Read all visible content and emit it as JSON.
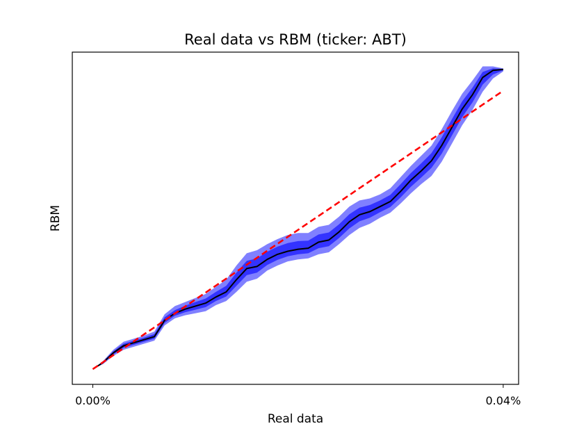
{
  "chart_data": {
    "type": "line",
    "title": "Real data vs RBM (ticker: ABT)",
    "xlabel": "Real data",
    "ylabel": "RBM",
    "x_ticks": [
      {
        "value": 0.0,
        "label": "0.00%"
      },
      {
        "value": 0.04,
        "label": "0.04%"
      }
    ],
    "xlim": [
      -0.002,
      0.0415
    ],
    "ylim": [
      -0.0015,
      0.0312
    ],
    "grid": false,
    "legend": "none",
    "x": [
      0.0,
      0.001,
      0.002,
      0.003,
      0.004,
      0.005,
      0.006,
      0.007,
      0.008,
      0.009,
      0.01,
      0.011,
      0.012,
      0.013,
      0.014,
      0.015,
      0.016,
      0.017,
      0.018,
      0.019,
      0.02,
      0.021,
      0.022,
      0.023,
      0.024,
      0.025,
      0.026,
      0.027,
      0.028,
      0.029,
      0.03,
      0.031,
      0.032,
      0.033,
      0.034,
      0.035,
      0.036,
      0.037,
      0.038,
      0.039,
      0.04
    ],
    "series": [
      {
        "role": "rbm-median",
        "color": "#000000",
        "values": [
          0.0,
          0.00065,
          0.0016,
          0.0023,
          0.0026,
          0.0029,
          0.0032,
          0.0048,
          0.0055,
          0.0059,
          0.0062,
          0.0065,
          0.0071,
          0.0076,
          0.0088,
          0.0099,
          0.0101,
          0.0108,
          0.0113,
          0.0116,
          0.0118,
          0.0119,
          0.0125,
          0.0127,
          0.0135,
          0.0145,
          0.0152,
          0.0155,
          0.016,
          0.0165,
          0.0175,
          0.0186,
          0.0195,
          0.0205,
          0.022,
          0.0238,
          0.0256,
          0.027,
          0.0287,
          0.0294,
          0.0295
        ]
      },
      {
        "role": "reference",
        "color": "#ff0000",
        "values": [
          0.0,
          0.000685,
          0.00137,
          0.002055,
          0.00274,
          0.003425,
          0.00411,
          0.004795,
          0.00548,
          0.006165,
          0.00685,
          0.007535,
          0.00822,
          0.008905,
          0.00959,
          0.010275,
          0.01096,
          0.011645,
          0.01233,
          0.013015,
          0.0137,
          0.014385,
          0.01507,
          0.015755,
          0.01644,
          0.017125,
          0.01781,
          0.018495,
          0.01918,
          0.019865,
          0.02055,
          0.021235,
          0.02192,
          0.022605,
          0.02329,
          0.023975,
          0.02466,
          0.025345,
          0.02603,
          0.026715,
          0.0274
        ]
      }
    ],
    "bands": [
      {
        "role": "outer",
        "color": "#8080ff",
        "lower": [
          0.0,
          0.0005,
          0.0013,
          0.0019,
          0.0022,
          0.0025,
          0.0028,
          0.0043,
          0.005,
          0.0053,
          0.0055,
          0.0057,
          0.0063,
          0.0067,
          0.0076,
          0.0086,
          0.0089,
          0.0097,
          0.0102,
          0.0106,
          0.0108,
          0.0109,
          0.0113,
          0.0115,
          0.0123,
          0.0132,
          0.0139,
          0.0143,
          0.0149,
          0.0154,
          0.0163,
          0.0173,
          0.0182,
          0.019,
          0.0204,
          0.0222,
          0.024,
          0.0255,
          0.0273,
          0.0286,
          0.0293
        ],
        "upper": [
          0.0,
          0.0008,
          0.0019,
          0.0027,
          0.003,
          0.0033,
          0.0037,
          0.0054,
          0.0062,
          0.0066,
          0.007,
          0.0074,
          0.0081,
          0.0088,
          0.0102,
          0.0114,
          0.0117,
          0.0123,
          0.0128,
          0.0132,
          0.0134,
          0.0134,
          0.014,
          0.0142,
          0.015,
          0.016,
          0.0166,
          0.0168,
          0.0172,
          0.0178,
          0.0189,
          0.02,
          0.021,
          0.022,
          0.0236,
          0.0254,
          0.0271,
          0.0284,
          0.0298,
          0.0298,
          0.0296
        ]
      },
      {
        "role": "inner",
        "color": "#3333ff",
        "lower": [
          0.0,
          0.00055,
          0.00145,
          0.0021,
          0.0024,
          0.0027,
          0.003,
          0.00455,
          0.00525,
          0.0056,
          0.00585,
          0.0061,
          0.0067,
          0.00715,
          0.0082,
          0.00925,
          0.0095,
          0.01025,
          0.01075,
          0.0111,
          0.0113,
          0.0114,
          0.0119,
          0.0121,
          0.0129,
          0.01385,
          0.01455,
          0.0149,
          0.01545,
          0.01595,
          0.0169,
          0.01795,
          0.01885,
          0.0198,
          0.0212,
          0.023,
          0.0248,
          0.02625,
          0.028,
          0.029,
          0.0294
        ],
        "upper": [
          0.0,
          0.00075,
          0.00175,
          0.0025,
          0.0028,
          0.0031,
          0.00345,
          0.0051,
          0.0058,
          0.00625,
          0.0066,
          0.00695,
          0.0076,
          0.0082,
          0.0095,
          0.01065,
          0.0109,
          0.01155,
          0.01205,
          0.0124,
          0.0126,
          0.01265,
          0.01325,
          0.01345,
          0.01425,
          0.01525,
          0.0159,
          0.01615,
          0.0166,
          0.01715,
          0.0182,
          0.0193,
          0.02025,
          0.02125,
          0.0228,
          0.0246,
          0.02635,
          0.0277,
          0.02925,
          0.0296,
          0.02955
        ]
      }
    ]
  }
}
